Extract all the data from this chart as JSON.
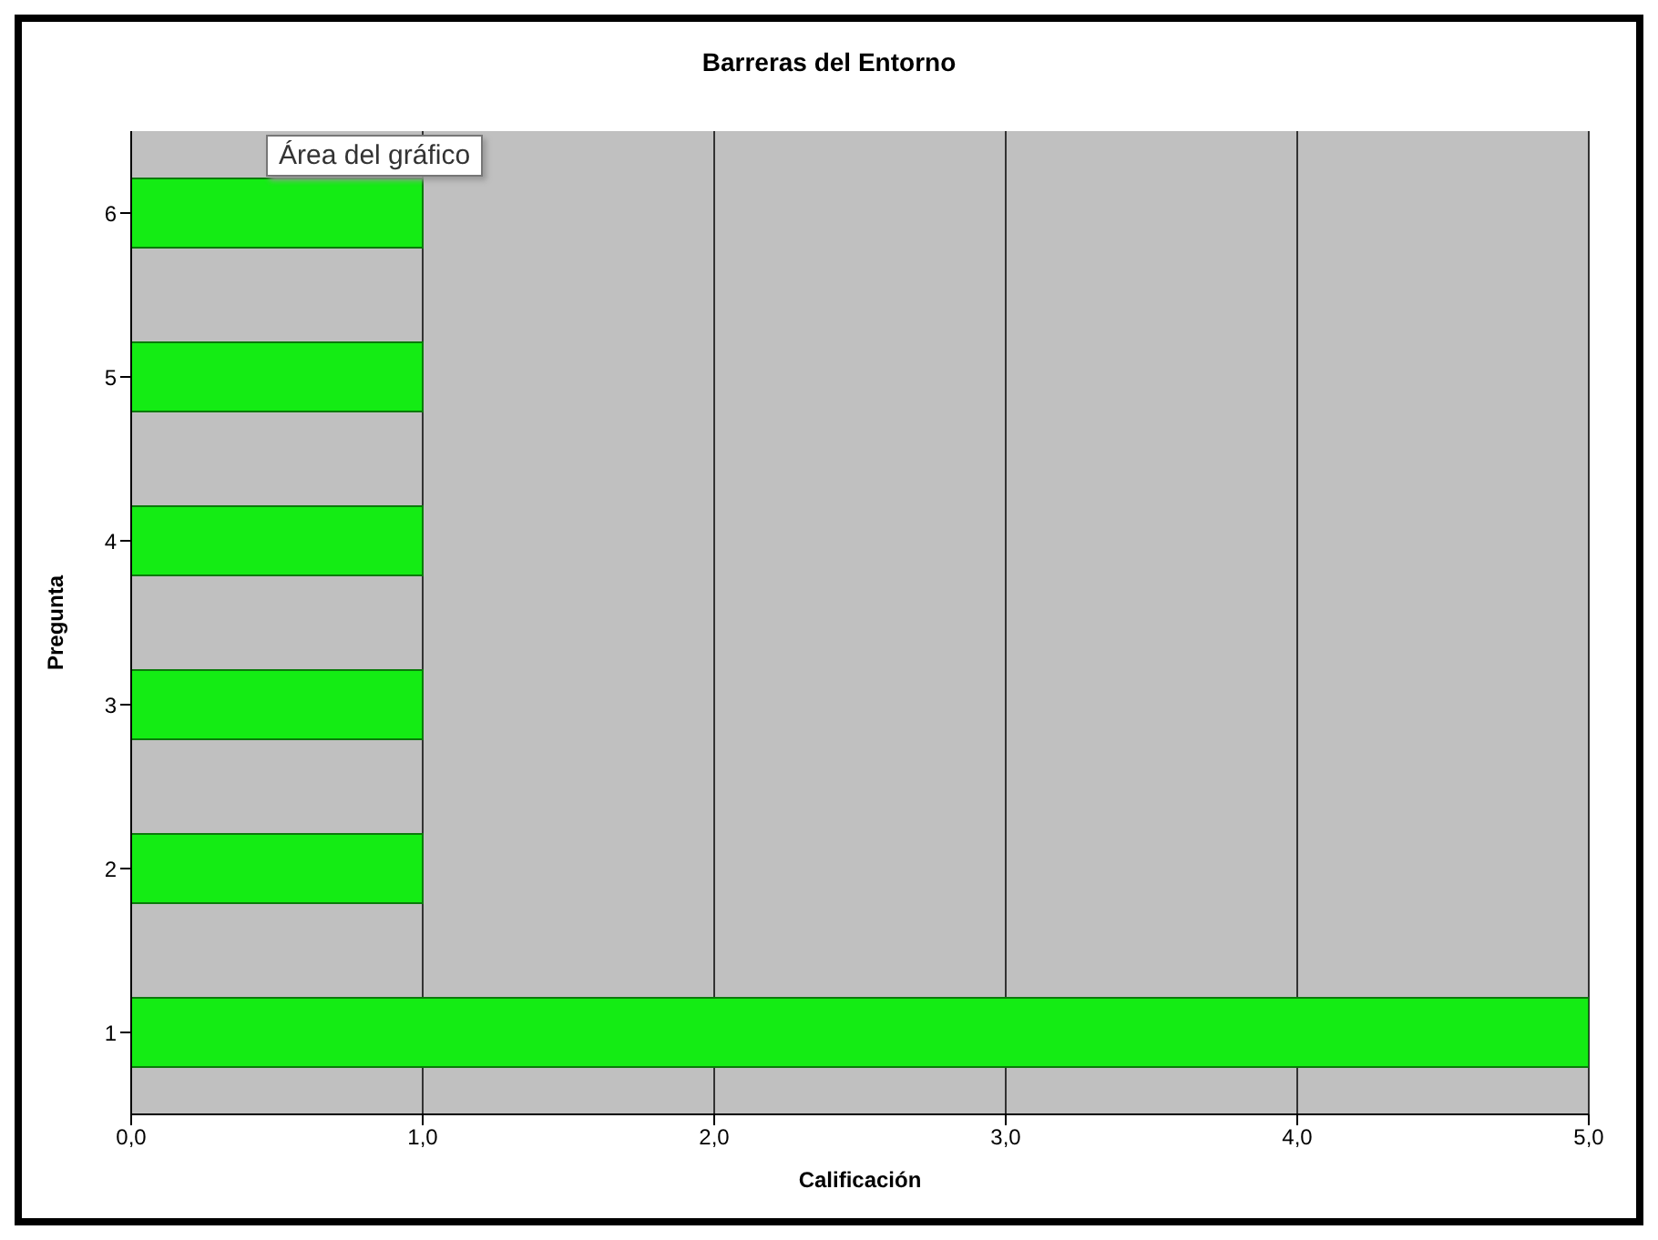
{
  "chart_data": {
    "type": "bar",
    "orientation": "horizontal",
    "title": "Barreras del Entorno",
    "xlabel": "Calificación",
    "ylabel": "Pregunta",
    "categories": [
      "6",
      "5",
      "4",
      "3",
      "2",
      "1"
    ],
    "values": [
      1,
      1,
      1,
      1,
      1,
      5
    ],
    "color": "#14ec14",
    "xlim": [
      0,
      5
    ],
    "xticks": [
      {
        "value": 0,
        "label": "0,0"
      },
      {
        "value": 1,
        "label": "1,0"
      },
      {
        "value": 2,
        "label": "2,0"
      },
      {
        "value": 3,
        "label": "3,0"
      },
      {
        "value": 4,
        "label": "4,0"
      },
      {
        "value": 5,
        "label": "5,0"
      }
    ],
    "grid": "x",
    "annotations": [
      "Área del gráfico"
    ]
  }
}
